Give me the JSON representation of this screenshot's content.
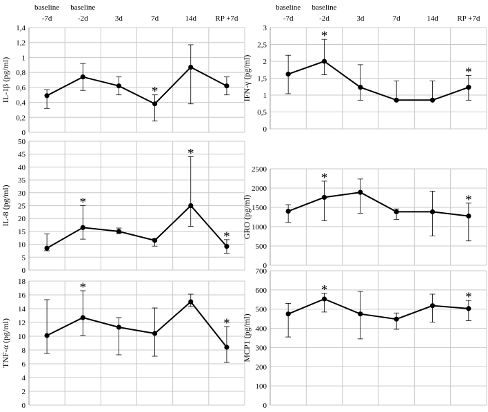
{
  "chart_data": [
    {
      "id": "il1b",
      "type": "line",
      "ylabel": "IL-1β (pg/ml)",
      "categories": [
        "baseline -7d",
        "baseline -2d",
        "3d",
        "7d",
        "14d",
        "RP +7d"
      ],
      "category_lines": [
        [
          "baseline",
          "-7d"
        ],
        [
          "baseline",
          "-2d"
        ],
        [
          "",
          "3d"
        ],
        [
          "",
          "7d"
        ],
        [
          "",
          "14d"
        ],
        [
          "",
          "RP +7d"
        ]
      ],
      "show_categories": true,
      "y_ticks": [
        "0",
        "0,2",
        "0,4",
        "0,6",
        "0,8",
        "1",
        "1,2",
        "1,4"
      ],
      "ylim": [
        0,
        1.4
      ],
      "values": [
        0.49,
        0.74,
        0.62,
        0.38,
        0.87,
        0.62
      ],
      "err_low": [
        0.32,
        0.56,
        0.5,
        0.15,
        0.38,
        0.5
      ],
      "err_high": [
        0.57,
        0.92,
        0.74,
        0.5,
        1.17,
        0.74
      ],
      "significant": [
        false,
        false,
        false,
        true,
        false,
        false
      ],
      "star_label": "*"
    },
    {
      "id": "ifng",
      "type": "line",
      "ylabel": "IFN-γ (pg/ml)",
      "categories": [
        "baseline -7d",
        "baseline -2d",
        "3d",
        "7d",
        "14d",
        "RP +7d"
      ],
      "category_lines": [
        [
          "baseline",
          "-7d"
        ],
        [
          "baseline",
          "-2d"
        ],
        [
          "",
          "3d"
        ],
        [
          "",
          "7d"
        ],
        [
          "",
          "14d"
        ],
        [
          "",
          "RP +7d"
        ]
      ],
      "show_categories": true,
      "y_ticks": [
        "0",
        "0,5",
        "1",
        "1,5",
        "2",
        "2,5",
        "3"
      ],
      "ylim": [
        0,
        3
      ],
      "values": [
        1.62,
        2.0,
        1.23,
        0.85,
        0.85,
        1.23
      ],
      "err_low": [
        1.04,
        1.6,
        0.85,
        0.85,
        0.85,
        0.85
      ],
      "err_high": [
        2.18,
        2.65,
        1.9,
        1.42,
        1.42,
        1.58
      ],
      "significant": [
        false,
        true,
        false,
        false,
        false,
        true
      ],
      "star_label": "*"
    },
    {
      "id": "il8",
      "type": "line",
      "ylabel": "IL-8 (pg/ml)",
      "categories": [
        "baseline -7d",
        "baseline -2d",
        "3d",
        "7d",
        "14d",
        "RP +7d"
      ],
      "show_categories": false,
      "y_ticks": [
        "0",
        "5",
        "10",
        "15",
        "20",
        "25",
        "30",
        "35",
        "40",
        "45",
        "50"
      ],
      "ylim": [
        0,
        50
      ],
      "values": [
        8.5,
        16.5,
        15.0,
        11.5,
        25.0,
        9.2
      ],
      "err_low": [
        7.5,
        12.0,
        14.2,
        9.3,
        17.0,
        6.5
      ],
      "err_high": [
        14.0,
        25.0,
        16.3,
        12.2,
        44.0,
        11.8
      ],
      "significant": [
        false,
        true,
        false,
        false,
        true,
        true
      ],
      "star_label": "*"
    },
    {
      "id": "gro",
      "type": "line",
      "ylabel": "GRO (pg/ml)",
      "categories": [
        "baseline -7d",
        "baseline -2d",
        "3d",
        "7d",
        "14d",
        "RP +7d"
      ],
      "show_categories": false,
      "y_ticks": [
        "0",
        "500",
        "1000",
        "1500",
        "2000",
        "2500"
      ],
      "ylim": [
        0,
        2500
      ],
      "values": [
        1400,
        1760,
        1890,
        1385,
        1385,
        1275
      ],
      "err_low": [
        1110,
        1150,
        1350,
        1190,
        760,
        630
      ],
      "err_high": [
        1570,
        2180,
        2235,
        1460,
        1920,
        1610
      ],
      "significant": [
        false,
        true,
        false,
        false,
        false,
        true
      ],
      "star_label": "*"
    },
    {
      "id": "tnfa",
      "type": "line",
      "ylabel": "TNF-α (pg/ml)",
      "categories": [
        "baseline -7d",
        "baseline -2d",
        "3d",
        "7d",
        "14d",
        "RP +7d"
      ],
      "show_categories": false,
      "y_ticks": [
        "0",
        "2",
        "4",
        "6",
        "8",
        "10",
        "12",
        "14",
        "16",
        "18"
      ],
      "ylim": [
        0,
        18
      ],
      "values": [
        10.1,
        12.7,
        11.3,
        10.4,
        15.0,
        8.4
      ],
      "err_low": [
        7.5,
        10.1,
        7.3,
        7.1,
        14.3,
        6.2
      ],
      "err_high": [
        15.3,
        16.6,
        12.7,
        14.1,
        16.1,
        11.4
      ],
      "significant": [
        false,
        true,
        false,
        false,
        false,
        true
      ],
      "star_label": "*"
    },
    {
      "id": "mcp1",
      "type": "line",
      "ylabel": "MCP1 (pg/ml)",
      "categories": [
        "baseline -7d",
        "baseline -2d",
        "3d",
        "7d",
        "14d",
        "RP +7d"
      ],
      "show_categories": false,
      "y_ticks": [
        "0",
        "100",
        "200",
        "300",
        "400",
        "500",
        "600",
        "700"
      ],
      "ylim": [
        0,
        700
      ],
      "values": [
        475,
        553,
        475,
        448,
        518,
        503
      ],
      "err_low": [
        355,
        485,
        345,
        395,
        432,
        440
      ],
      "err_high": [
        530,
        583,
        592,
        480,
        578,
        545
      ],
      "significant": [
        false,
        true,
        false,
        false,
        false,
        true
      ],
      "star_label": "*"
    }
  ]
}
